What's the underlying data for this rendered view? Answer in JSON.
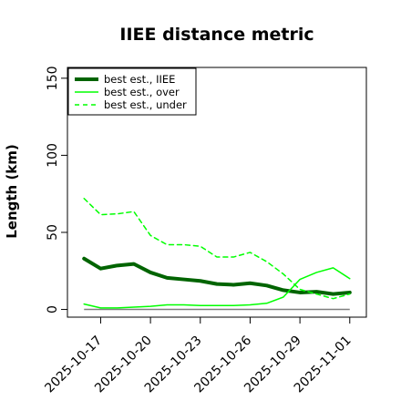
{
  "chart_data": {
    "type": "line",
    "title": "IIEE distance metric",
    "xlabel": "",
    "ylabel": "Length (km)",
    "x": [
      "2025-10-16",
      "2025-10-17",
      "2025-10-18",
      "2025-10-19",
      "2025-10-20",
      "2025-10-21",
      "2025-10-22",
      "2025-10-23",
      "2025-10-24",
      "2025-10-25",
      "2025-10-26",
      "2025-10-27",
      "2025-10-28",
      "2025-10-29",
      "2025-10-30",
      "2025-10-31",
      "2025-11-01"
    ],
    "x_ticks": [
      "2025-10-17",
      "2025-10-20",
      "2025-10-23",
      "2025-10-26",
      "2025-10-29",
      "2025-11-01"
    ],
    "y_ticks": [
      0,
      50,
      100,
      150
    ],
    "ylim": [
      -5,
      157
    ],
    "xlim": [
      "2025-10-15",
      "2025-11-02"
    ],
    "grid": false,
    "legend_position": "top-left",
    "reference_line": 0,
    "series": [
      {
        "name": "best est., IIEE",
        "color": "#006400",
        "style": "solid",
        "width": 4,
        "values": [
          33,
          26.5,
          28.5,
          29.5,
          24,
          20.5,
          19.5,
          18.5,
          16.5,
          16,
          17,
          15.5,
          12.5,
          11,
          11.5,
          10,
          11
        ]
      },
      {
        "name": "best est., over",
        "color": "#00ff00",
        "style": "solid",
        "width": 1.5,
        "values": [
          3.5,
          1,
          1,
          1.5,
          2,
          3,
          3,
          2.5,
          2.5,
          2.5,
          3,
          4,
          8,
          19.5,
          24,
          27,
          20
        ]
      },
      {
        "name": "best est., under",
        "color": "#00ff00",
        "style": "dashed",
        "width": 1.5,
        "values": [
          72,
          61.5,
          62,
          63.5,
          48,
          42,
          42,
          41,
          34,
          34,
          37,
          31,
          23,
          13,
          10,
          7,
          10
        ]
      }
    ]
  }
}
